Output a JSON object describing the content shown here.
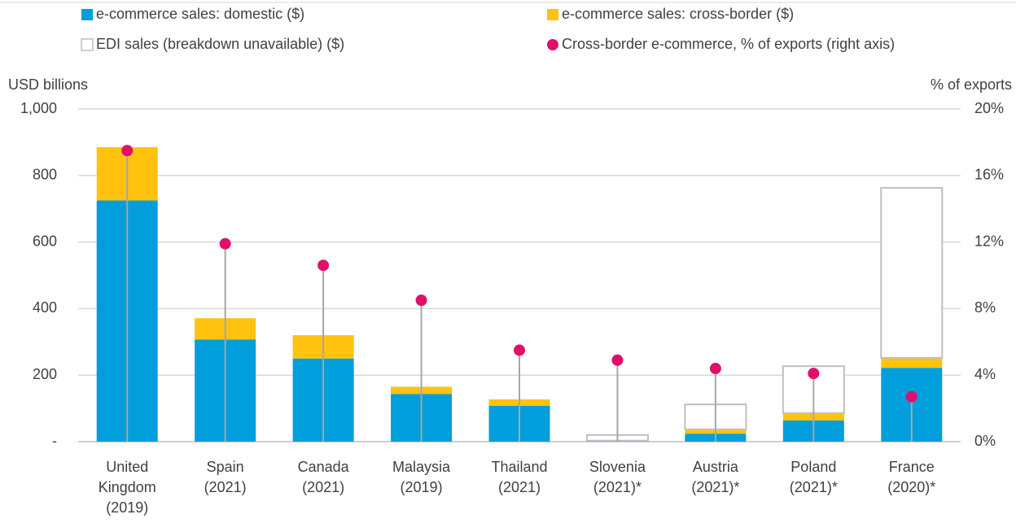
{
  "chart_data": {
    "type": "bar",
    "stacked": true,
    "y_label": "USD billions",
    "y2_label": "% of exports",
    "categories": [
      "United Kingdom (2019)",
      "Spain (2021)",
      "Canada (2021)",
      "Malaysia (2019)",
      "Thailand (2021)",
      "Slovenia (2021)*",
      "Austria (2021)*",
      "Poland (2021)*",
      "France (2020)*"
    ],
    "series": [
      {
        "name": "e-commerce sales: domestic ($)",
        "color": "#009fdb",
        "values": [
          725,
          307,
          250,
          143,
          108,
          2,
          24,
          64,
          222
        ]
      },
      {
        "name": "e-commerce sales: cross-border ($)",
        "color": "#ffc20e",
        "values": [
          160,
          64,
          70,
          22,
          19,
          1,
          13,
          22,
          30
        ]
      },
      {
        "name": "EDI sales (breakdown unavailable) ($)",
        "color": "#ffffff",
        "edgecolor": "#bfbfbf",
        "values": [
          0,
          0,
          0,
          0,
          0,
          17,
          75,
          141,
          511
        ]
      },
      {
        "name": "Cross-border e-commerce, % of exports (right axis)",
        "color": "#e0106a",
        "stemcolor": "#a6a6a6",
        "axis": "y2",
        "values": [
          17.5,
          11.9,
          10.6,
          8.5,
          5.5,
          4.9,
          4.4,
          4.1,
          2.7
        ]
      }
    ],
    "ylim": [
      0,
      1000
    ],
    "yticks": [
      {
        "value": 0,
        "label": "-"
      },
      200,
      400,
      600,
      800,
      {
        "value": 1000,
        "label": "1,000"
      }
    ],
    "y2lim": [
      0,
      20
    ],
    "y2ticks": [
      {
        "value": 0,
        "label": "0%"
      },
      {
        "value": 4,
        "label": "4%"
      },
      {
        "value": 8,
        "label": "8%"
      },
      {
        "value": 12,
        "label": "12%"
      },
      {
        "value": 16,
        "label": "16%"
      },
      {
        "value": 20,
        "label": "20%"
      }
    ],
    "grid": true,
    "legend": "top"
  }
}
